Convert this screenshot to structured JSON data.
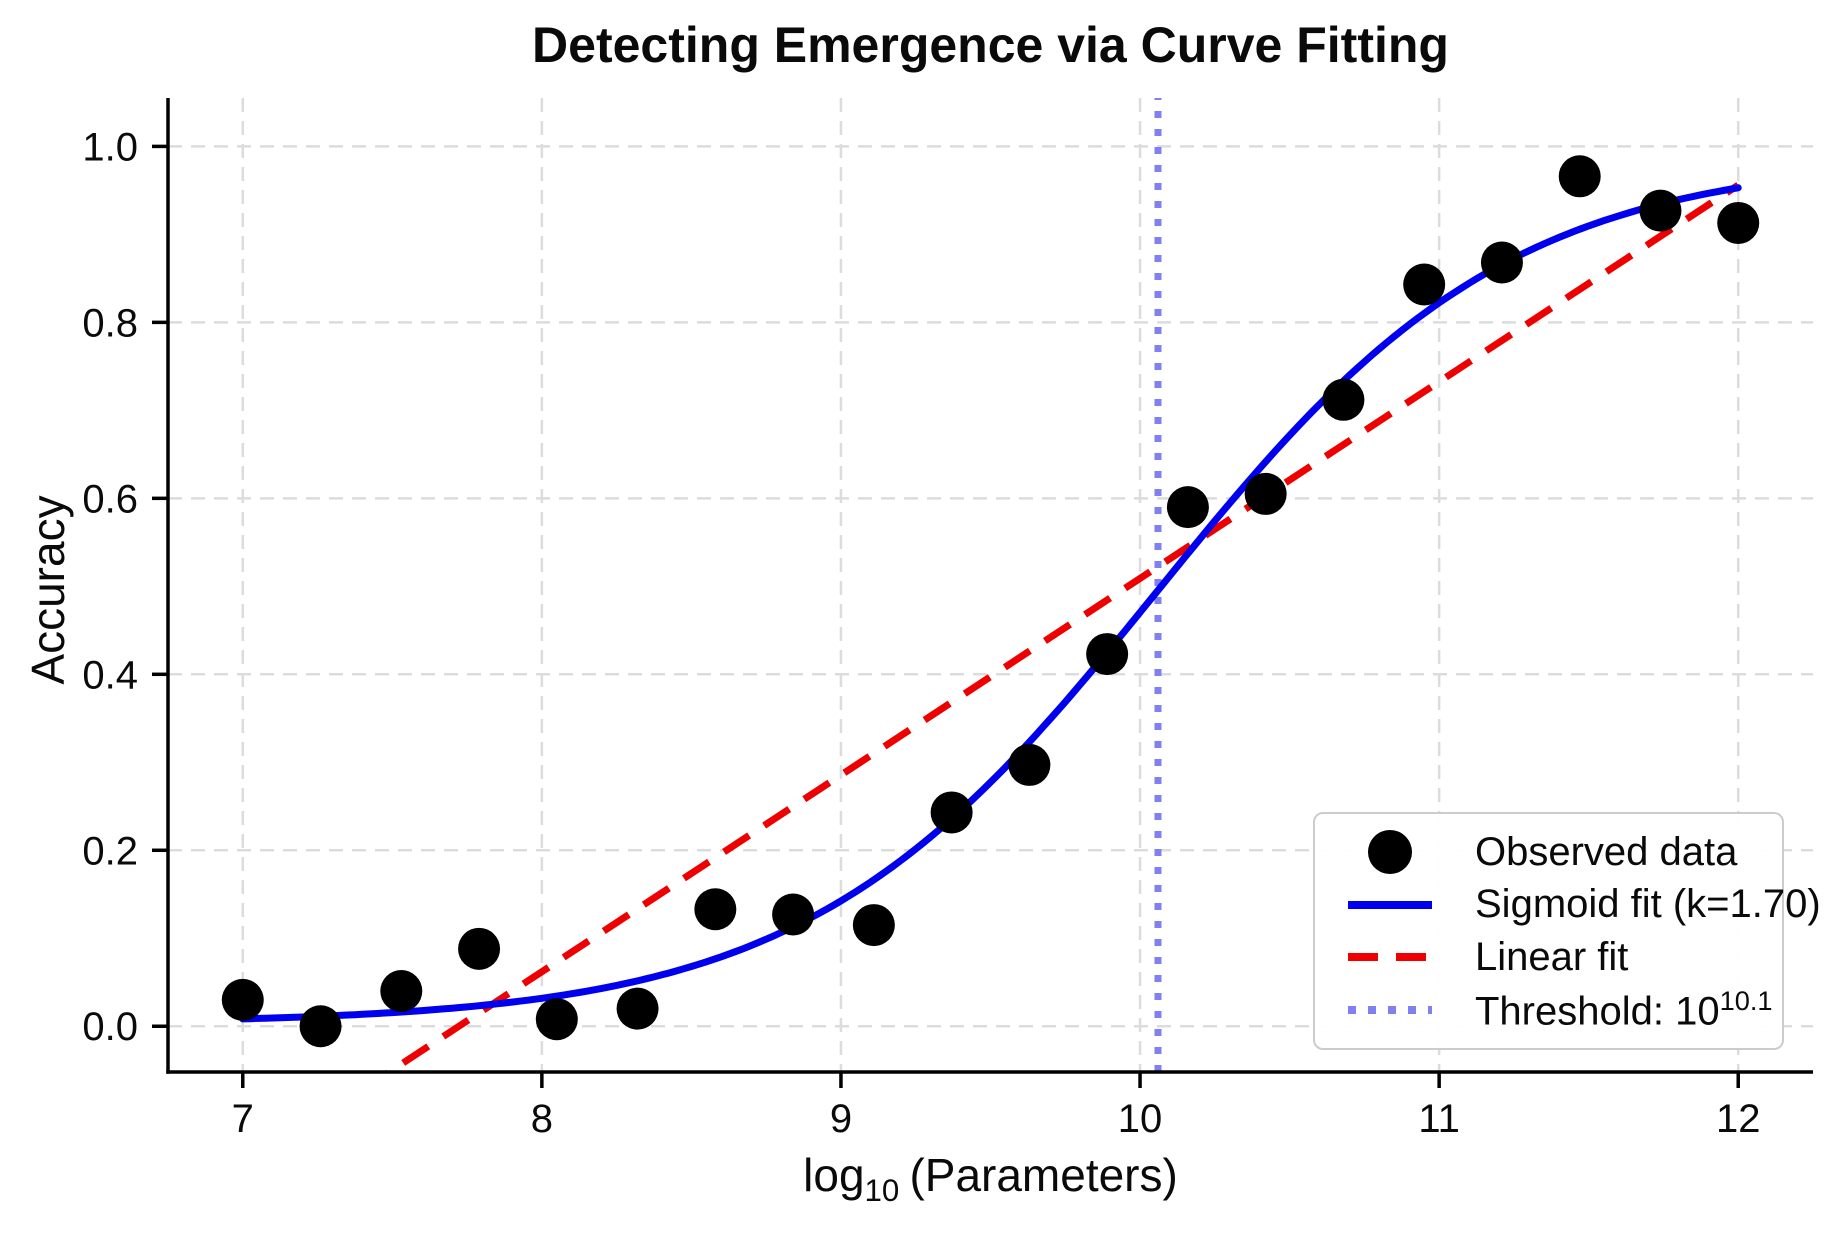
{
  "chart_data": {
    "type": "scatter",
    "title": "Detecting Emergence via Curve Fitting",
    "xlabel": "log10 (Parameters)",
    "ylabel": "Accuracy",
    "xlim": [
      6.75,
      12.25
    ],
    "ylim": [
      -0.052,
      1.055
    ],
    "grid": true,
    "legend_position": "lower right",
    "x_ticks": [
      {
        "v": 7,
        "label": "7"
      },
      {
        "v": 8,
        "label": "8"
      },
      {
        "v": 9,
        "label": "9"
      },
      {
        "v": 10,
        "label": "10"
      },
      {
        "v": 11,
        "label": "11"
      },
      {
        "v": 12,
        "label": "12"
      }
    ],
    "y_ticks": [
      {
        "v": 0.0,
        "label": "0.0"
      },
      {
        "v": 0.2,
        "label": "0.2"
      },
      {
        "v": 0.4,
        "label": "0.4"
      },
      {
        "v": 0.6,
        "label": "0.6"
      },
      {
        "v": 0.8,
        "label": "0.8"
      },
      {
        "v": 1.0,
        "label": "1.0"
      }
    ],
    "series": [
      {
        "name": "Observed data",
        "type": "scatter",
        "color": "#000000",
        "marker_radius_px": 21,
        "points": [
          [
            7.0,
            0.03
          ],
          [
            7.26,
            0.0
          ],
          [
            7.53,
            0.04
          ],
          [
            7.79,
            0.088
          ],
          [
            8.05,
            0.008
          ],
          [
            8.32,
            0.02
          ],
          [
            8.58,
            0.133
          ],
          [
            8.84,
            0.127
          ],
          [
            9.11,
            0.115
          ],
          [
            9.37,
            0.243
          ],
          [
            9.63,
            0.297
          ],
          [
            9.89,
            0.423
          ],
          [
            10.16,
            0.59
          ],
          [
            10.42,
            0.605
          ],
          [
            10.68,
            0.712
          ],
          [
            10.95,
            0.843
          ],
          [
            11.21,
            0.868
          ],
          [
            11.47,
            0.966
          ],
          [
            11.74,
            0.927
          ],
          [
            12.0,
            0.913
          ]
        ]
      },
      {
        "name": "Sigmoid fit (k=1.70)",
        "type": "line",
        "style": "solid",
        "color": "#0000ee",
        "model": "sigmoid",
        "params": {
          "k": 1.7,
          "x0": 10.06,
          "L": 0.985,
          "y0": 0.003
        },
        "x_range": [
          7.0,
          12.0
        ]
      },
      {
        "name": "Linear fit",
        "type": "line",
        "style": "dashed",
        "color": "#ee0000",
        "model": "linear",
        "params": {
          "slope": 0.2235,
          "intercept": -1.726
        },
        "x_range": [
          7.0,
          12.0
        ]
      },
      {
        "name": "Threshold: 10^10.1",
        "type": "vline",
        "style": "dotted",
        "color": "#8080f0",
        "x": 10.06,
        "threshold_label_value": "10.1"
      }
    ]
  },
  "axes": {
    "x": {
      "label_prefix": "log",
      "label_sub": "10",
      "label_suffix": "(Parameters)"
    },
    "y": {
      "label": "Accuracy"
    }
  },
  "legend": {
    "items": [
      {
        "label": "Observed data",
        "marker": "circle",
        "color": "#000000"
      },
      {
        "label": "Sigmoid fit (k=1.70)",
        "marker": "solid-line",
        "color": "#0000ee"
      },
      {
        "label": "Linear fit",
        "marker": "dashed-line",
        "color": "#ee0000"
      },
      {
        "label_prefix": "Threshold: 10",
        "label_sup": "10.1",
        "marker": "dotted-line",
        "color": "#8080f0"
      }
    ]
  },
  "colors": {
    "grid": "#dcdcdc",
    "spine": "#000000",
    "text": "#0a0a0a",
    "scatter": "#000000",
    "sigmoid_line": "#0000ee",
    "linear_line": "#ee0000",
    "threshold_line": "#8080f0",
    "legend_border": "#cccccc",
    "background": "#ffffff"
  }
}
